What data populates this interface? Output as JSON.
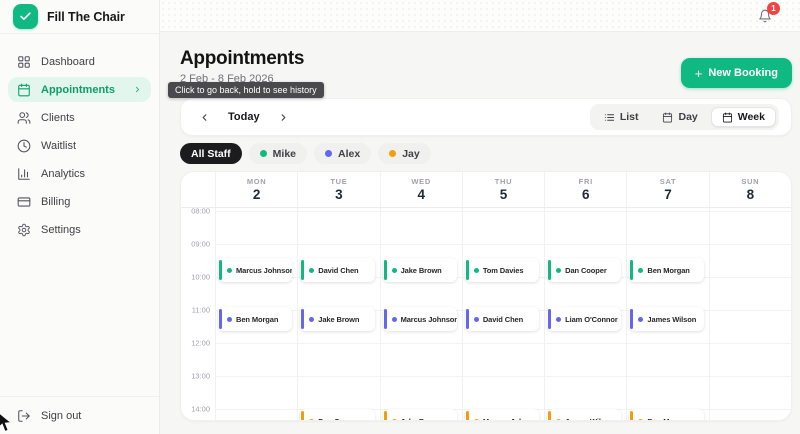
{
  "app": {
    "title": "Fill The Chair",
    "logo_icon": "check-icon"
  },
  "sidebar": {
    "items": [
      {
        "label": "Dashboard",
        "icon": "dashboard-icon",
        "active": false
      },
      {
        "label": "Appointments",
        "icon": "calendar-icon",
        "active": true
      },
      {
        "label": "Clients",
        "icon": "users-icon",
        "active": false
      },
      {
        "label": "Waitlist",
        "icon": "clock-icon",
        "active": false
      },
      {
        "label": "Analytics",
        "icon": "bar-chart-icon",
        "active": false
      },
      {
        "label": "Billing",
        "icon": "credit-card-icon",
        "active": false
      },
      {
        "label": "Settings",
        "icon": "gear-icon",
        "active": false
      }
    ],
    "sign_out_label": "Sign out"
  },
  "topbar": {
    "notification_count": "1"
  },
  "header": {
    "title": "Appointments",
    "date_range": "2 Feb - 8 Feb 2026",
    "new_booking": {
      "plus": "+",
      "label": "New Booking"
    }
  },
  "tooltip": {
    "text": "Click to go back, hold to see history"
  },
  "toolbar": {
    "today_label": "Today",
    "views": [
      {
        "label": "List",
        "icon": "list-icon",
        "active": false
      },
      {
        "label": "Day",
        "icon": "calendar-icon",
        "active": false
      },
      {
        "label": "Week",
        "icon": "calendar-icon",
        "active": true
      }
    ]
  },
  "staff_filter": [
    {
      "label": "All Staff",
      "active": true,
      "color": null
    },
    {
      "label": "Mike",
      "active": false,
      "color": "#10b981"
    },
    {
      "label": "Alex",
      "active": false,
      "color": "#6366f1"
    },
    {
      "label": "Jay",
      "active": false,
      "color": "#f59e0b"
    }
  ],
  "calendar": {
    "days": [
      {
        "name": "MON",
        "date": "2"
      },
      {
        "name": "TUE",
        "date": "3"
      },
      {
        "name": "WED",
        "date": "4"
      },
      {
        "name": "THU",
        "date": "5"
      },
      {
        "name": "FRI",
        "date": "6"
      },
      {
        "name": "SAT",
        "date": "7"
      },
      {
        "name": "SUN",
        "date": "8"
      }
    ],
    "times": [
      "08:00",
      "09:00",
      "10:00",
      "11:00",
      "12:00",
      "13:00",
      "14:00"
    ],
    "events": [
      {
        "day": 0,
        "slot": 0,
        "staff": "Mike",
        "name": "Marcus Johnson"
      },
      {
        "day": 1,
        "slot": 0,
        "staff": "Mike",
        "name": "David Chen"
      },
      {
        "day": 2,
        "slot": 0,
        "staff": "Mike",
        "name": "Jake Brown"
      },
      {
        "day": 3,
        "slot": 0,
        "staff": "Mike",
        "name": "Tom Davies"
      },
      {
        "day": 4,
        "slot": 0,
        "staff": "Mike",
        "name": "Dan Cooper"
      },
      {
        "day": 5,
        "slot": 0,
        "staff": "Mike",
        "name": "Ben Morgan"
      },
      {
        "day": 0,
        "slot": 1,
        "staff": "Alex",
        "name": "Ben Morgan"
      },
      {
        "day": 1,
        "slot": 1,
        "staff": "Alex",
        "name": "Jake Brown"
      },
      {
        "day": 2,
        "slot": 1,
        "staff": "Alex",
        "name": "Marcus Johnson"
      },
      {
        "day": 3,
        "slot": 1,
        "staff": "Alex",
        "name": "David Chen"
      },
      {
        "day": 4,
        "slot": 1,
        "staff": "Alex",
        "name": "Liam O'Connor"
      },
      {
        "day": 5,
        "slot": 1,
        "staff": "Alex",
        "name": "James Wilson"
      },
      {
        "day": 1,
        "slot": 2,
        "staff": "Jay",
        "name": "Dan Cooper"
      },
      {
        "day": 2,
        "slot": 2,
        "staff": "Jay",
        "name": "Jake Brown"
      },
      {
        "day": 3,
        "slot": 2,
        "staff": "Jay",
        "name": "Marcus Johnson"
      },
      {
        "day": 4,
        "slot": 2,
        "staff": "Jay",
        "name": "James Wilson"
      },
      {
        "day": 5,
        "slot": 2,
        "staff": "Jay",
        "name": "Ben Morgan"
      }
    ]
  },
  "colors": {
    "accent_green": "#10b981",
    "active_nav_bg": "#e2f6ed",
    "active_nav_text": "#0d9e6e",
    "badge_red": "#ef4444",
    "staff_mike": "#10b981",
    "staff_alex": "#6366f1",
    "staff_jay": "#f59e0b"
  }
}
